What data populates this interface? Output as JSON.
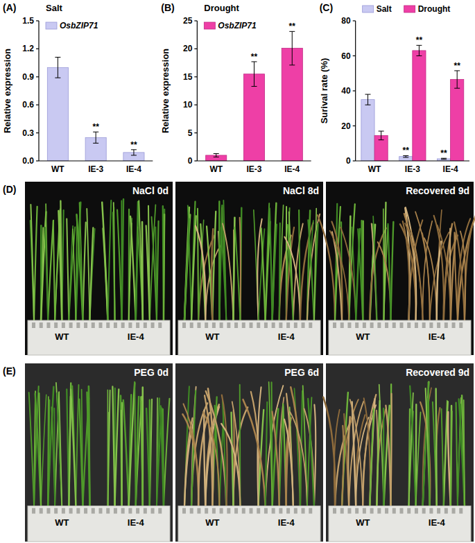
{
  "chart_data": [
    {
      "type": "bar",
      "panel_label": "(A)",
      "title": "Salt",
      "y_label": "Relative expression",
      "categories": [
        "WT",
        "IE-3",
        "IE-4"
      ],
      "series": [
        {
          "name": "OsbZIP71",
          "color": "#c9c9f2",
          "values": [
            1.0,
            0.25,
            0.09
          ],
          "errors": [
            0.11,
            0.06,
            0.03
          ],
          "significance": [
            null,
            "**",
            "**"
          ]
        }
      ],
      "ylim": [
        0,
        1.5
      ],
      "yticks": [
        {
          "value": 0,
          "label": "0.0"
        },
        {
          "value": 0.3,
          "label": "0.3"
        },
        {
          "value": 0.6,
          "label": "0.6"
        },
        {
          "value": 0.9,
          "label": "0.9"
        },
        {
          "value": 1.2,
          "label": "1.2"
        },
        {
          "value": 1.5,
          "label": "1.5"
        }
      ],
      "legend": "upper left"
    },
    {
      "type": "bar",
      "panel_label": "(B)",
      "title": "Drought",
      "y_label": "Relative expression",
      "categories": [
        "WT",
        "IE-3",
        "IE-4"
      ],
      "series": [
        {
          "name": "OsbZIP71",
          "color": "#ee3fa6",
          "values": [
            1.0,
            15.5,
            20.1
          ],
          "errors": [
            0.3,
            2.2,
            3.0
          ],
          "significance": [
            null,
            "**",
            "**"
          ]
        }
      ],
      "ylim": [
        0,
        25
      ],
      "yticks": [
        0,
        5,
        10,
        15,
        20,
        25
      ],
      "legend": "upper left"
    },
    {
      "type": "bar",
      "panel_label": "(C)",
      "y_label": "Surival rate (%)",
      "categories": [
        "WT",
        "IE-3",
        "IE-4"
      ],
      "series": [
        {
          "name": "Salt",
          "color": "#c9c9f2",
          "values": [
            35,
            2.5,
            1.2
          ],
          "errors": [
            3,
            0.5,
            0.3
          ],
          "significance": [
            null,
            "**",
            "**"
          ]
        },
        {
          "name": "Drought",
          "color": "#ee3fa6",
          "values": [
            14.5,
            63,
            46.5
          ],
          "errors": [
            2.5,
            3,
            5
          ],
          "significance": [
            null,
            "**",
            "**"
          ]
        }
      ],
      "ylim": [
        0,
        80
      ],
      "yticks": [
        0,
        20,
        40,
        60,
        80
      ],
      "legend": "upper left"
    }
  ],
  "photos": [
    {
      "panel_label": "(D)",
      "frames": [
        {
          "label": "NaCl 0d",
          "groups": [
            "WT",
            "IE-4"
          ]
        },
        {
          "label": "NaCl 8d",
          "groups": [
            "WT",
            "IE-4"
          ]
        },
        {
          "label": "Recovered 9d",
          "groups": [
            "WT",
            "IE-4"
          ]
        }
      ]
    },
    {
      "panel_label": "(E)",
      "frames": [
        {
          "label": "PEG 0d",
          "groups": [
            "WT",
            "IE-4"
          ]
        },
        {
          "label": "PEG 6d",
          "groups": [
            "WT",
            "IE-4"
          ]
        },
        {
          "label": "Recovered 9d",
          "groups": [
            "WT",
            "IE-4"
          ]
        }
      ]
    }
  ]
}
